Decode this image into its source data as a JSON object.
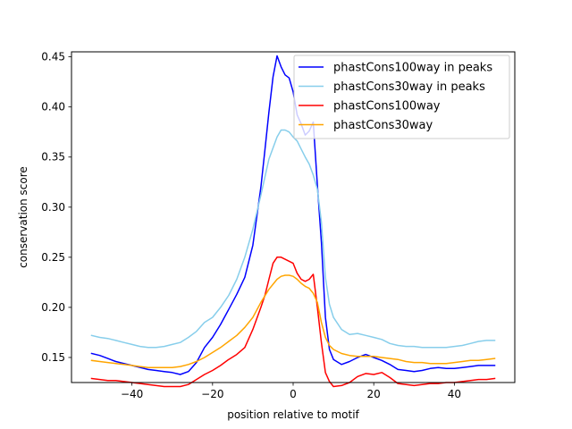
{
  "chart_data": {
    "type": "line",
    "title": "",
    "xlabel": "position relative to motif",
    "ylabel": "conservation score",
    "xlim": [
      -55,
      55
    ],
    "ylim": [
      0.125,
      0.455
    ],
    "x_ticks": [
      -40,
      -20,
      0,
      20,
      40
    ],
    "x_tick_labels": [
      "−40",
      "−20",
      "0",
      "20",
      "40"
    ],
    "y_ticks": [
      0.15,
      0.2,
      0.25,
      0.3,
      0.35,
      0.4,
      0.45
    ],
    "y_tick_labels": [
      "0.15",
      "0.20",
      "0.25",
      "0.30",
      "0.35",
      "0.40",
      "0.45"
    ],
    "grid": false,
    "legend_position": "top-right",
    "series": [
      {
        "name": "phastCons100way in peaks",
        "color": "#0000ff",
        "x": [
          -50,
          -48,
          -46,
          -44,
          -42,
          -40,
          -38,
          -36,
          -34,
          -32,
          -30,
          -28,
          -26,
          -24,
          -22,
          -20,
          -18,
          -16,
          -14,
          -12,
          -10,
          -8,
          -7,
          -6,
          -5,
          -4,
          -3,
          -2,
          -1,
          0,
          1,
          2,
          3,
          4,
          5,
          6,
          7,
          8,
          9,
          10,
          12,
          14,
          16,
          18,
          20,
          22,
          24,
          26,
          28,
          30,
          32,
          34,
          36,
          38,
          40,
          42,
          44,
          46,
          48,
          50
        ],
        "y": [
          0.154,
          0.152,
          0.149,
          0.146,
          0.144,
          0.142,
          0.14,
          0.138,
          0.137,
          0.136,
          0.135,
          0.133,
          0.136,
          0.145,
          0.16,
          0.17,
          0.183,
          0.198,
          0.213,
          0.23,
          0.262,
          0.32,
          0.357,
          0.395,
          0.43,
          0.451,
          0.44,
          0.432,
          0.429,
          0.415,
          0.392,
          0.383,
          0.372,
          0.376,
          0.385,
          0.322,
          0.265,
          0.19,
          0.158,
          0.148,
          0.143,
          0.146,
          0.15,
          0.153,
          0.15,
          0.147,
          0.143,
          0.138,
          0.137,
          0.136,
          0.137,
          0.139,
          0.14,
          0.139,
          0.139,
          0.14,
          0.141,
          0.142,
          0.142,
          0.142
        ]
      },
      {
        "name": "phastCons30way in peaks",
        "color": "#87ceeb",
        "x": [
          -50,
          -48,
          -46,
          -44,
          -42,
          -40,
          -38,
          -36,
          -34,
          -32,
          -30,
          -28,
          -26,
          -24,
          -22,
          -20,
          -18,
          -16,
          -14,
          -12,
          -10,
          -8,
          -6,
          -4,
          -3,
          -2,
          -1,
          0,
          1,
          2,
          3,
          4,
          5,
          6,
          7,
          8,
          9,
          10,
          12,
          14,
          16,
          18,
          20,
          22,
          24,
          26,
          28,
          30,
          32,
          34,
          36,
          38,
          40,
          42,
          44,
          46,
          48,
          50
        ],
        "y": [
          0.172,
          0.17,
          0.169,
          0.167,
          0.165,
          0.163,
          0.161,
          0.16,
          0.16,
          0.161,
          0.163,
          0.165,
          0.17,
          0.176,
          0.185,
          0.19,
          0.2,
          0.212,
          0.228,
          0.25,
          0.278,
          0.312,
          0.348,
          0.37,
          0.377,
          0.377,
          0.375,
          0.37,
          0.366,
          0.358,
          0.35,
          0.343,
          0.332,
          0.318,
          0.285,
          0.23,
          0.203,
          0.19,
          0.178,
          0.173,
          0.174,
          0.172,
          0.17,
          0.168,
          0.164,
          0.162,
          0.161,
          0.161,
          0.16,
          0.16,
          0.16,
          0.16,
          0.161,
          0.162,
          0.164,
          0.166,
          0.167,
          0.167
        ]
      },
      {
        "name": "phastCons100way",
        "color": "#ff0000",
        "x": [
          -50,
          -48,
          -46,
          -44,
          -42,
          -40,
          -38,
          -36,
          -34,
          -32,
          -30,
          -28,
          -26,
          -24,
          -22,
          -20,
          -18,
          -16,
          -14,
          -12,
          -10,
          -8,
          -7,
          -6,
          -5,
          -4,
          -3,
          -2,
          -1,
          0,
          1,
          2,
          3,
          4,
          5,
          6,
          7,
          8,
          9,
          10,
          12,
          14,
          16,
          18,
          20,
          22,
          24,
          26,
          28,
          30,
          32,
          34,
          36,
          38,
          40,
          42,
          44,
          46,
          48,
          50
        ],
        "y": [
          0.129,
          0.128,
          0.127,
          0.127,
          0.126,
          0.125,
          0.124,
          0.123,
          0.122,
          0.121,
          0.121,
          0.121,
          0.123,
          0.128,
          0.133,
          0.137,
          0.142,
          0.148,
          0.153,
          0.16,
          0.178,
          0.2,
          0.212,
          0.228,
          0.244,
          0.25,
          0.25,
          0.248,
          0.246,
          0.244,
          0.234,
          0.228,
          0.226,
          0.228,
          0.233,
          0.2,
          0.165,
          0.135,
          0.126,
          0.121,
          0.122,
          0.125,
          0.131,
          0.134,
          0.133,
          0.135,
          0.13,
          0.124,
          0.123,
          0.122,
          0.123,
          0.124,
          0.124,
          0.125,
          0.125,
          0.126,
          0.127,
          0.128,
          0.128,
          0.129
        ]
      },
      {
        "name": "phastCons30way",
        "color": "#ffa500",
        "x": [
          -50,
          -48,
          -46,
          -44,
          -42,
          -40,
          -38,
          -36,
          -34,
          -32,
          -30,
          -28,
          -26,
          -24,
          -22,
          -20,
          -18,
          -16,
          -14,
          -12,
          -10,
          -8,
          -6,
          -4,
          -3,
          -2,
          -1,
          0,
          1,
          2,
          3,
          4,
          5,
          6,
          7,
          8,
          9,
          10,
          12,
          14,
          16,
          18,
          20,
          22,
          24,
          26,
          28,
          30,
          32,
          34,
          36,
          38,
          40,
          42,
          44,
          46,
          48,
          50
        ],
        "y": [
          0.147,
          0.146,
          0.145,
          0.144,
          0.143,
          0.142,
          0.141,
          0.14,
          0.14,
          0.14,
          0.14,
          0.141,
          0.143,
          0.146,
          0.15,
          0.155,
          0.16,
          0.166,
          0.172,
          0.18,
          0.19,
          0.205,
          0.218,
          0.228,
          0.231,
          0.232,
          0.232,
          0.231,
          0.228,
          0.224,
          0.221,
          0.219,
          0.214,
          0.205,
          0.185,
          0.17,
          0.162,
          0.158,
          0.154,
          0.152,
          0.151,
          0.151,
          0.151,
          0.15,
          0.149,
          0.148,
          0.146,
          0.145,
          0.145,
          0.144,
          0.144,
          0.144,
          0.145,
          0.146,
          0.147,
          0.147,
          0.148,
          0.149
        ]
      }
    ]
  }
}
